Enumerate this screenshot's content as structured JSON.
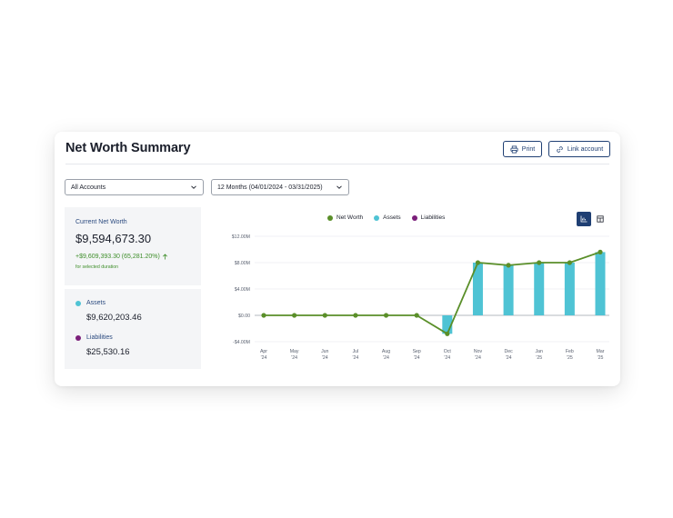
{
  "header": {
    "title": "Net Worth Summary",
    "print_label": "Print",
    "link_account_label": "Link account"
  },
  "filters": {
    "accounts_value": "All Accounts",
    "range_value": "12 Months (04/01/2024 - 03/31/2025)"
  },
  "summary": {
    "current_net_worth_label": "Current Net Worth",
    "current_net_worth_value": "$9,594,673.30",
    "change_text": "+$9,609,393.30  (65,281.20%)",
    "change_subtext": "for selected duration",
    "assets_label": "Assets",
    "assets_value": "$9,620,203.46",
    "liabilities_label": "Liabilities",
    "liabilities_value": "$25,530.16"
  },
  "colors": {
    "net_worth": "#5a8f29",
    "assets": "#4fc3d4",
    "liabilities": "#7b1f7a",
    "primary": "#1f3f73",
    "positive": "#3e8e2a"
  },
  "chart_data": {
    "type": "bar",
    "categories": [
      "Apr '24",
      "May '24",
      "Jun '24",
      "Jul '24",
      "Aug '24",
      "Sep '24",
      "Oct '24",
      "Nov '24",
      "Dec '24",
      "Jan '25",
      "Feb '25",
      "Mar '25"
    ],
    "x_tick_labels": [
      {
        "month": "Apr",
        "year": "'24"
      },
      {
        "month": "May",
        "year": "'24"
      },
      {
        "month": "Jun",
        "year": "'24"
      },
      {
        "month": "Jul",
        "year": "'24"
      },
      {
        "month": "Aug",
        "year": "'24"
      },
      {
        "month": "Sep",
        "year": "'24"
      },
      {
        "month": "Oct",
        "year": "'24"
      },
      {
        "month": "Nov",
        "year": "'24"
      },
      {
        "month": "Dec",
        "year": "'24"
      },
      {
        "month": "Jan",
        "year": "'25"
      },
      {
        "month": "Feb",
        "year": "'25"
      },
      {
        "month": "Mar",
        "year": "'25"
      }
    ],
    "series": [
      {
        "name": "Net Worth",
        "kind": "line",
        "values": [
          0,
          0,
          0,
          0,
          0,
          0,
          -2.8,
          8.0,
          7.6,
          8.0,
          8.0,
          9.6
        ]
      },
      {
        "name": "Assets",
        "kind": "bar",
        "values": [
          0,
          0,
          0,
          0,
          0,
          0,
          -2.8,
          8.0,
          7.6,
          8.0,
          8.0,
          9.6
        ]
      },
      {
        "name": "Liabilities",
        "kind": "bar",
        "values": [
          0,
          0,
          0,
          0,
          0,
          0,
          0,
          0,
          0,
          0,
          0,
          0
        ]
      }
    ],
    "y_unit": "$M",
    "ylim": [
      -4,
      12
    ],
    "y_ticks": [
      12,
      8,
      4,
      0,
      -4
    ],
    "y_tick_labels": [
      "$12.00M",
      "$8.00M",
      "$4.00M",
      "$0.00",
      "-$4.00M"
    ],
    "grid": true,
    "legend": "top-center"
  }
}
